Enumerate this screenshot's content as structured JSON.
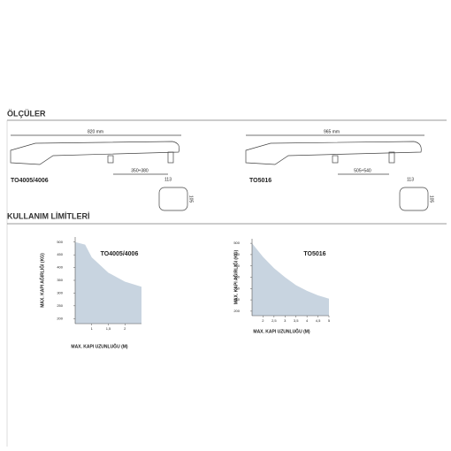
{
  "sections": [
    "ÖLÇÜLER",
    "KULLANIM LİMİTLERİ"
  ],
  "drawings": [
    {
      "model": "TO4005/4006",
      "length": "820 mm",
      "stroke": "350÷380",
      "width": "113",
      "height": "105"
    },
    {
      "model": "TO5016",
      "length": "965 mm",
      "stroke": "505÷540",
      "width": "113",
      "height": "105"
    }
  ],
  "chart_data": [
    {
      "type": "area",
      "title": "TO4005/4006",
      "x_label": "MAX. KAPI UZUNLUĞU (M)",
      "y_label": "MAX. KAPI AĞIRLIĞI (KG)",
      "x": [
        0.5,
        0.8,
        1,
        1.5,
        2,
        2.5
      ],
      "series": [
        {
          "color": "#c8d4e0",
          "values": [
            500,
            490,
            440,
            380,
            345,
            325
          ]
        }
      ],
      "xlim": [
        0.5,
        2.5
      ],
      "xticks": [
        1,
        {
          "value": 1.5,
          "label": "1,5"
        },
        2
      ],
      "ylim": [
        180,
        520
      ],
      "yticks": [
        500,
        450,
        400,
        350,
        300,
        250,
        200
      ]
    },
    {
      "type": "area",
      "title": "TO5016",
      "x_label": "MAX. KAPI UZUNLUĞU (M)",
      "y_label": "MAX. KAPI AĞIRLIĞI (KG)",
      "x": [
        1.5,
        2,
        2.5,
        3,
        3.5,
        4,
        4.5,
        5
      ],
      "series": [
        {
          "color": "#c8d4e0",
          "values": [
            500,
            440,
            390,
            350,
            315,
            290,
            270,
            255
          ]
        }
      ],
      "xlim": [
        1.5,
        5
      ],
      "xticks": [
        2,
        {
          "value": 2.5,
          "label": "2,5"
        },
        3,
        {
          "value": 3.5,
          "label": "3,5"
        },
        4,
        {
          "value": 4.5,
          "label": "4,5"
        },
        5
      ],
      "ylim": [
        180,
        520
      ],
      "yticks": [
        500,
        450,
        400,
        350,
        300,
        250,
        200
      ]
    }
  ]
}
